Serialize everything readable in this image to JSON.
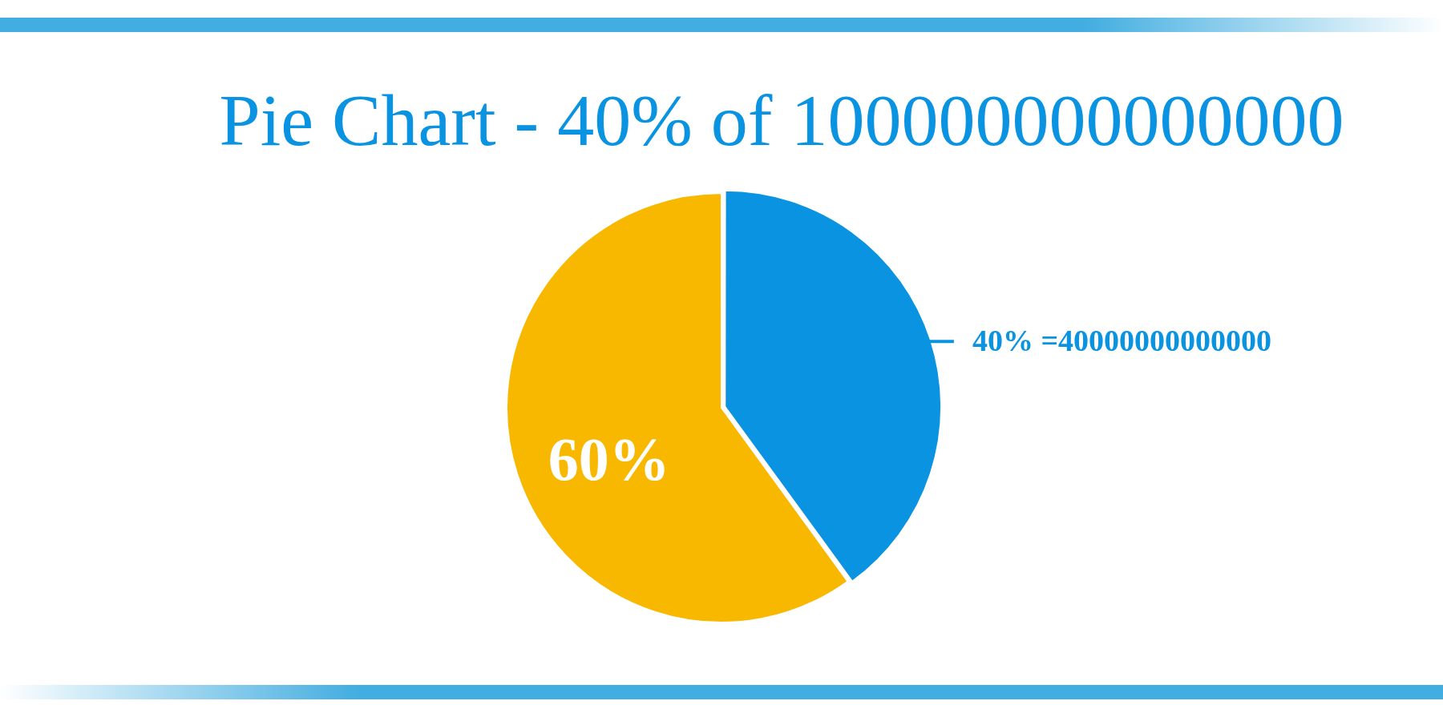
{
  "chart_data": {
    "type": "pie",
    "title": "Pie Chart - 40% of 100000000000000",
    "categories": [
      null,
      null
    ],
    "values": [
      40,
      60
    ],
    "colors": [
      "#0a93e0",
      "#f9b800"
    ],
    "value_labels": [
      "40% =40000000000000",
      "60%"
    ],
    "legend": false
  }
}
